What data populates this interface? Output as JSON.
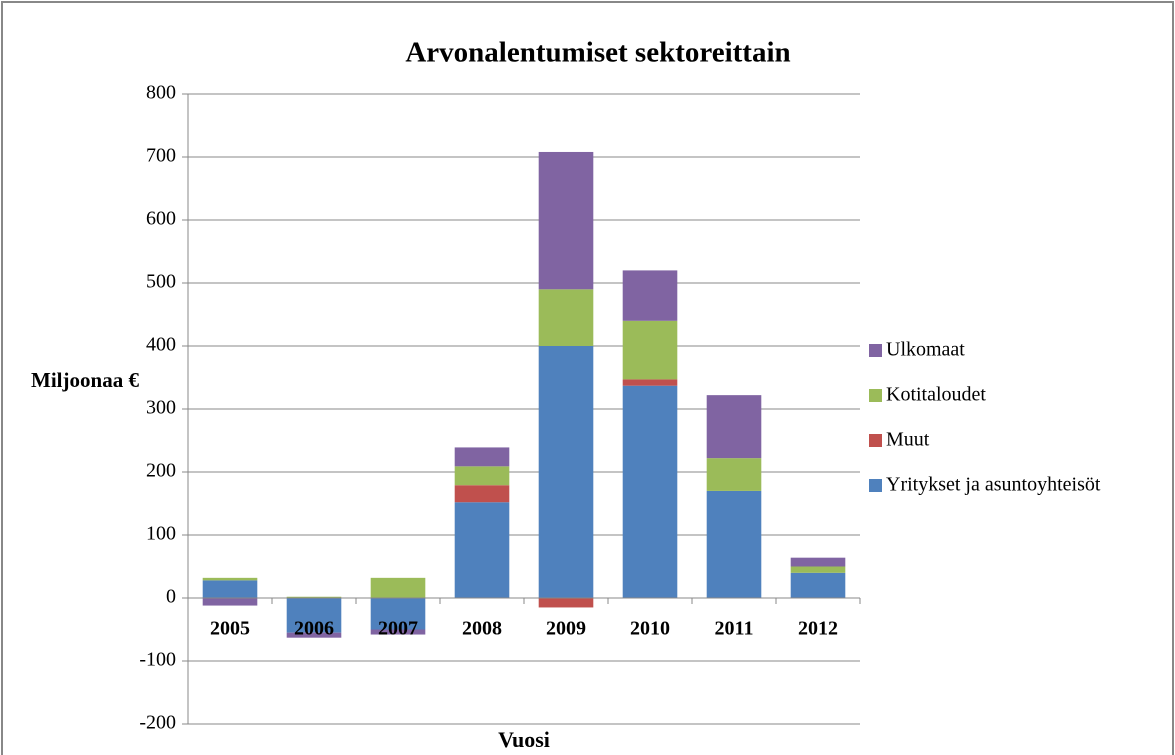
{
  "chart_data": {
    "type": "stacked_bar",
    "title": "Arvonalentumiset sektoreittain",
    "x_label": "Vuosi",
    "y_label": "Miljoonaa €",
    "categories": [
      "2005",
      "2006",
      "2007",
      "2008",
      "2009",
      "2010",
      "2011",
      "2012"
    ],
    "series": [
      {
        "name": "Yritykset ja asuntoyhteisöt",
        "color": "#4f81bd",
        "values": [
          28,
          -55,
          -50,
          152,
          400,
          337,
          170,
          40
        ]
      },
      {
        "name": "Muut",
        "color": "#c0504d",
        "values": [
          0,
          0,
          0,
          27,
          -15,
          10,
          0,
          0
        ]
      },
      {
        "name": "Kotitaloudet",
        "color": "#9bbb59",
        "values": [
          4,
          2,
          32,
          30,
          90,
          93,
          52,
          10
        ]
      },
      {
        "name": "Ulkomaat",
        "color": "#8064a2",
        "values": [
          -12,
          -8,
          -8,
          30,
          218,
          80,
          100,
          14
        ]
      }
    ],
    "ylim": [
      -200,
      800
    ],
    "yticks": [
      -200,
      -100,
      0,
      100,
      200,
      300,
      400,
      500,
      600,
      700,
      800
    ],
    "grid": true
  }
}
